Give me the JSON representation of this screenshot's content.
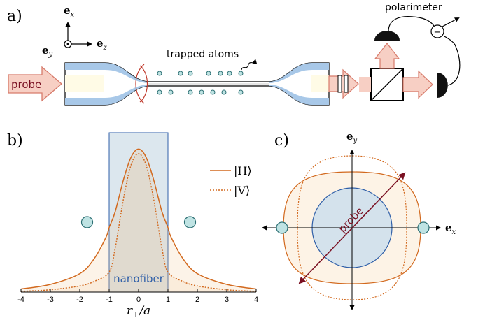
{
  "panels": {
    "a": {
      "label": "a)",
      "probe_label": "probe",
      "trapped_atoms_label": "trapped atoms",
      "polarimeter_label": "polarimeter",
      "minus_sign": "−",
      "axes": {
        "ex": "e",
        "ex_sub": "x",
        "ey": "e",
        "ey_sub": "y",
        "ez": "e",
        "ez_sub": "z"
      }
    },
    "b": {
      "label": "b)",
      "nanofiber_label": "nanofiber",
      "xlabel_main": "r",
      "xlabel_sub": "⊥",
      "xlabel_rest": "/a",
      "legend": {
        "H": "|H⟩",
        "V": "|V⟩"
      }
    },
    "c": {
      "label": "c)",
      "probe_label": "probe",
      "ey": "e",
      "ey_sub": "y",
      "ex": "e",
      "ex_sub": "x"
    }
  },
  "colors": {
    "orange": "#d2691e",
    "fiber_blue": "#2f5fa8",
    "fiber_fill": "#dce7ee",
    "probe_pink": "#f7cfc4",
    "probe_edge": "#d77a6a",
    "atom_fill": "#bfe3e3",
    "atom_edge": "#2c6f73",
    "dark_red": "#7a1022"
  },
  "chart_data": {
    "type": "line",
    "xlim": [
      -4,
      4
    ],
    "x_ticks": [
      "-4",
      "-3",
      "-2",
      "-1",
      "0",
      "1",
      "2",
      "3",
      "4"
    ],
    "fiber_region": [
      -1,
      1
    ],
    "atom_positions": [
      -1.75,
      1.75
    ],
    "series": [
      {
        "name": "|H⟩",
        "style": "solid",
        "x": [
          -4,
          -3,
          -2,
          -1.5,
          -1.1,
          -1,
          -0.8,
          -0.5,
          -0.25,
          0,
          0.25,
          0.5,
          0.8,
          1,
          1.1,
          1.5,
          2,
          3,
          4
        ],
        "y": [
          0.02,
          0.05,
          0.12,
          0.22,
          0.36,
          0.42,
          0.52,
          0.74,
          0.88,
          0.93,
          0.88,
          0.74,
          0.52,
          0.42,
          0.36,
          0.22,
          0.12,
          0.05,
          0.02
        ]
      },
      {
        "name": "|V⟩",
        "style": "dotted",
        "x": [
          -4,
          -3,
          -2,
          -1.5,
          -1,
          -0.8,
          -0.5,
          -0.25,
          0,
          0.25,
          0.5,
          0.8,
          1,
          1.5,
          2,
          3,
          4
        ],
        "y": [
          0.005,
          0.015,
          0.04,
          0.07,
          0.13,
          0.28,
          0.62,
          0.83,
          0.9,
          0.83,
          0.62,
          0.28,
          0.13,
          0.07,
          0.04,
          0.015,
          0.005
        ]
      }
    ]
  }
}
